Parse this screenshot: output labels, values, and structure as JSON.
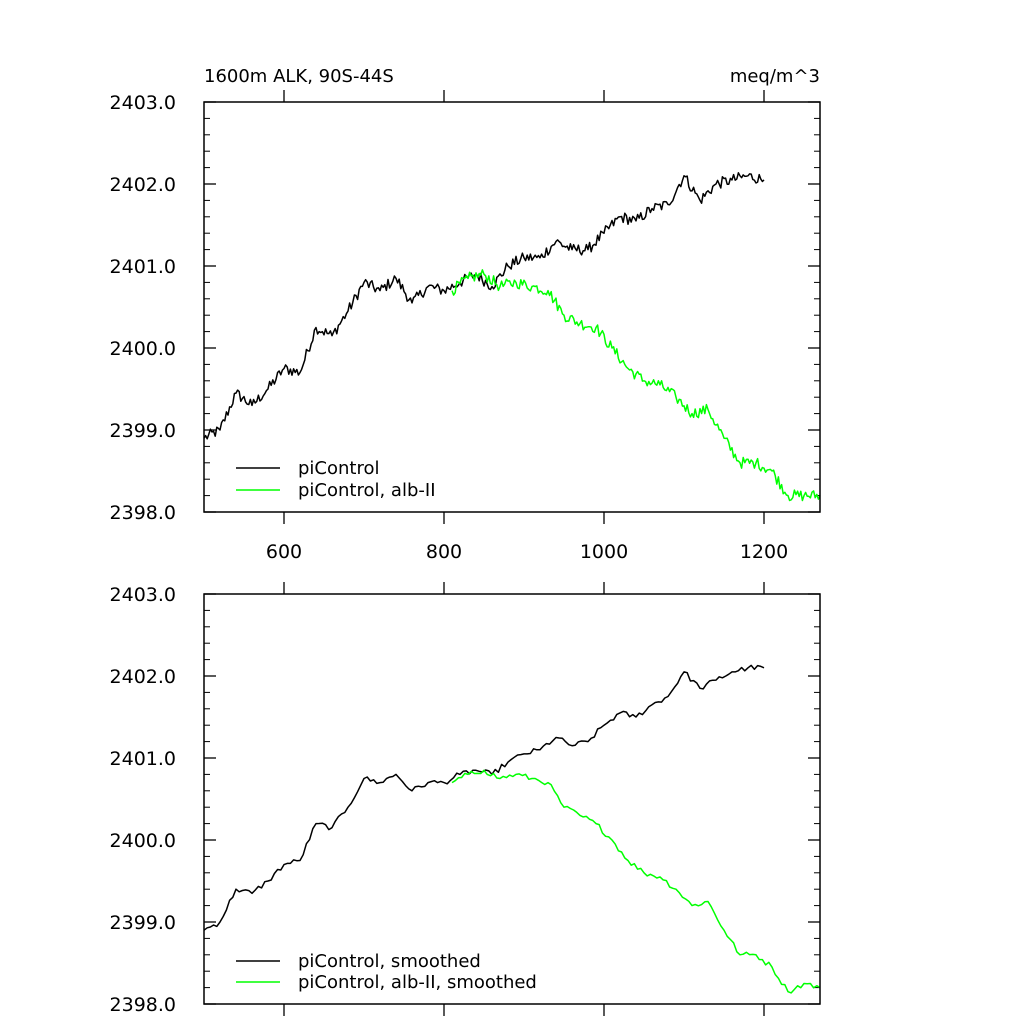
{
  "chart_data": [
    {
      "type": "line",
      "title_left": "1600m ALK, 90S-44S",
      "title_right": "meq/m^3",
      "xlabel": "",
      "ylabel": "",
      "xlim": [
        500,
        1270
      ],
      "ylim": [
        2398.0,
        2403.0
      ],
      "xticks": [
        600,
        800,
        1000,
        1200
      ],
      "xtick_labels": [
        "600",
        "800",
        "1000",
        "1200"
      ],
      "yticks": [
        2398.0,
        2399.0,
        2400.0,
        2401.0,
        2402.0,
        2403.0
      ],
      "ytick_labels": [
        "2398.0",
        "2399.0",
        "2400.0",
        "2401.0",
        "2402.0",
        "2403.0"
      ],
      "grid": false,
      "legend_position": "bottom-left",
      "series": [
        {
          "name": "piControl",
          "color": "#000000",
          "x": [
            500,
            520,
            540,
            560,
            580,
            600,
            620,
            640,
            660,
            680,
            700,
            720,
            740,
            760,
            780,
            800,
            820,
            840,
            860,
            880,
            900,
            920,
            940,
            960,
            980,
            1000,
            1020,
            1040,
            1060,
            1080,
            1100,
            1120,
            1140,
            1160,
            1180,
            1200
          ],
          "y": [
            2398.9,
            2399.0,
            2399.45,
            2399.3,
            2399.5,
            2399.75,
            2399.7,
            2400.25,
            2400.15,
            2400.45,
            2400.8,
            2400.7,
            2400.85,
            2400.55,
            2400.75,
            2400.7,
            2400.8,
            2400.9,
            2400.75,
            2401.0,
            2401.1,
            2401.1,
            2401.3,
            2401.2,
            2401.2,
            2401.4,
            2401.6,
            2401.55,
            2401.7,
            2401.75,
            2402.1,
            2401.8,
            2402.0,
            2402.05,
            2402.1,
            2402.05
          ]
        },
        {
          "name": "piControl, alb-II",
          "color": "#00ff00",
          "x": [
            810,
            830,
            850,
            870,
            890,
            910,
            930,
            950,
            970,
            990,
            1010,
            1030,
            1050,
            1070,
            1090,
            1110,
            1130,
            1150,
            1170,
            1190,
            1210,
            1230,
            1250,
            1270
          ],
          "y": [
            2400.7,
            2400.85,
            2400.9,
            2400.75,
            2400.8,
            2400.75,
            2400.7,
            2400.4,
            2400.3,
            2400.25,
            2400.0,
            2399.75,
            2399.6,
            2399.55,
            2399.4,
            2399.2,
            2399.25,
            2398.9,
            2398.6,
            2398.6,
            2398.5,
            2398.2,
            2398.2,
            2398.2
          ]
        }
      ]
    },
    {
      "type": "line",
      "xlabel": "",
      "ylabel": "",
      "xlim": [
        500,
        1270
      ],
      "ylim": [
        2398.0,
        2403.0
      ],
      "xticks": [
        600,
        800,
        1000,
        1200
      ],
      "yticks": [
        2398.0,
        2399.0,
        2400.0,
        2401.0,
        2402.0,
        2403.0
      ],
      "ytick_labels": [
        "2398.0",
        "2399.0",
        "2400.0",
        "2401.0",
        "2402.0",
        "2403.0"
      ],
      "grid": false,
      "legend_position": "bottom-left",
      "series": [
        {
          "name": "piControl, smoothed",
          "color": "#000000",
          "x": [
            500,
            520,
            540,
            560,
            580,
            600,
            620,
            640,
            660,
            680,
            700,
            720,
            740,
            760,
            780,
            800,
            820,
            840,
            860,
            880,
            900,
            920,
            940,
            960,
            980,
            1000,
            1020,
            1040,
            1060,
            1080,
            1100,
            1120,
            1140,
            1160,
            1180,
            1200
          ],
          "y": [
            2398.9,
            2399.0,
            2399.4,
            2399.35,
            2399.5,
            2399.7,
            2399.75,
            2400.2,
            2400.15,
            2400.4,
            2400.75,
            2400.7,
            2400.8,
            2400.6,
            2400.7,
            2400.7,
            2400.8,
            2400.85,
            2400.8,
            2400.95,
            2401.05,
            2401.1,
            2401.25,
            2401.15,
            2401.2,
            2401.4,
            2401.55,
            2401.5,
            2401.65,
            2401.75,
            2402.05,
            2401.85,
            2401.95,
            2402.05,
            2402.1,
            2402.1
          ]
        },
        {
          "name": "piControl, alb-II, smoothed",
          "color": "#00ff00",
          "x": [
            810,
            830,
            850,
            870,
            890,
            910,
            930,
            950,
            970,
            990,
            1010,
            1030,
            1050,
            1070,
            1090,
            1110,
            1130,
            1150,
            1170,
            1190,
            1210,
            1230,
            1250,
            1270
          ],
          "y": [
            2400.7,
            2400.8,
            2400.85,
            2400.75,
            2400.8,
            2400.75,
            2400.7,
            2400.4,
            2400.3,
            2400.2,
            2400.0,
            2399.75,
            2399.6,
            2399.55,
            2399.4,
            2399.2,
            2399.25,
            2398.9,
            2398.6,
            2398.6,
            2398.45,
            2398.15,
            2398.25,
            2398.2
          ]
        }
      ]
    }
  ]
}
